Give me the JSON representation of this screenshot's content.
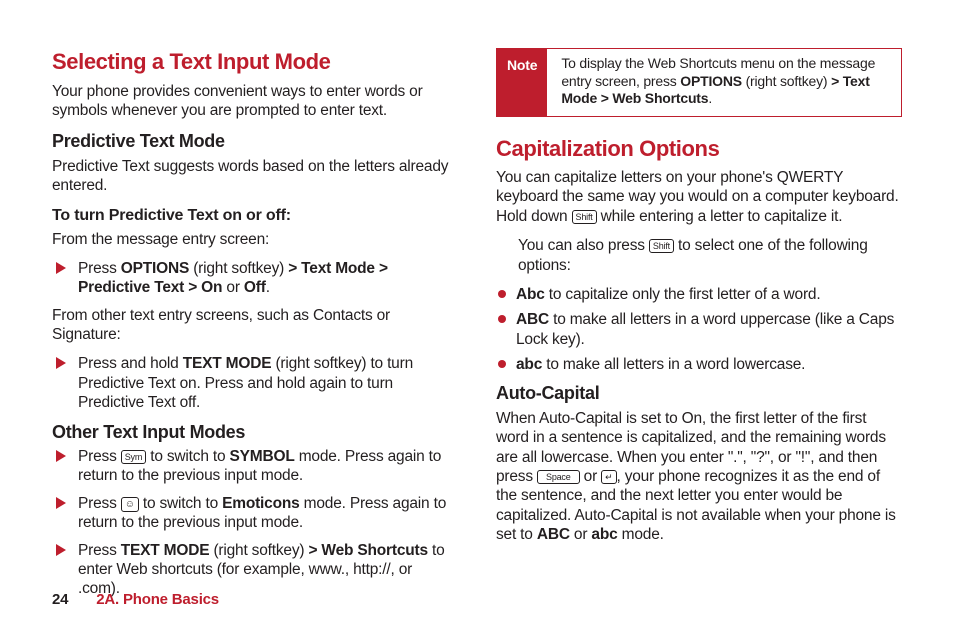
{
  "colors": {
    "accent": "#be1e2d",
    "text": "#231f20",
    "background": "#ffffff"
  },
  "left": {
    "h1": "Selecting a Text Input Mode",
    "intro": "Your phone provides convenient ways to enter words or symbols whenever you are prompted to enter text.",
    "predictive": {
      "h2": "Predictive Text Mode",
      "body": "Predictive Text suggests words based on the letters already entered.",
      "howto_h": "To turn Predictive Text on or off:",
      "howto_intro": "From the message entry screen:",
      "step1_pre": "Press ",
      "step1_b1": "OPTIONS",
      "step1_mid1": " (right softkey) ",
      "step1_b2": "> Text Mode > Predictive Text > On",
      "step1_mid2": " or ",
      "step1_b3": "Off",
      "step1_end": ".",
      "other_intro": "From other text entry screens, such as Contacts or Signature:",
      "step2_pre": "Press and hold ",
      "step2_b1": "TEXT MODE",
      "step2_end": " (right softkey) to turn Predictive Text on. Press and hold again to turn Predictive Text off."
    },
    "other": {
      "h2": "Other Text Input Modes",
      "i1_pre": "Press ",
      "i1_key": "Sym",
      "i1_mid": " to switch to ",
      "i1_b": "SYMBOL",
      "i1_end": " mode. Press again to return to the previous input mode.",
      "i2_pre": "Press ",
      "i2_key": "☺",
      "i2_mid": " to switch to ",
      "i2_b": "Emoticons",
      "i2_end": " mode. Press again to return to the previous input mode.",
      "i3_pre": "Press ",
      "i3_b1": "TEXT MODE",
      "i3_mid": " (right softkey) ",
      "i3_b2": "> Web Shortcuts",
      "i3_end": " to enter Web shortcuts (for example, www., http://, or .com)."
    }
  },
  "right": {
    "note": {
      "label": "Note",
      "t1": "To display the Web Shortcuts menu on the message entry screen, press ",
      "b1": "OPTIONS",
      "t2": " (right softkey) ",
      "b2": "> Text Mode > Web Shortcuts",
      "t3": "."
    },
    "h1": "Capitalization Options",
    "p1_a": "You can capitalize letters on your phone's QWERTY keyboard the same way you would on a computer keyboard. Hold down ",
    "p1_key": "Shift",
    "p1_b": " while entering a letter to capitalize it.",
    "p2_a": "You can also press ",
    "p2_key": "Shift",
    "p2_b": " to select one of the following options:",
    "b1_b": "Abc",
    "b1_t": " to capitalize only the first letter of a word.",
    "b2_b": "ABC",
    "b2_t": " to make all letters in a word uppercase (like a Caps Lock key).",
    "b3_b": "abc",
    "b3_t": " to make all letters in a word lowercase.",
    "auto": {
      "h2": "Auto-Capital",
      "t1": "When Auto-Capital is set to On, the first letter of the first word in a sentence is capitalized, and the remaining words are all lowercase. When you enter \".\", \"?\", or \"!\", and then press ",
      "key1": "Space",
      "t2": " or ",
      "key2": "↵",
      "t3": ", your phone recognizes it as the end of the sentence, and the next letter you enter would be capitalized. Auto-Capital is not available when your phone is set to ",
      "b1": "ABC",
      "t4": " or ",
      "b2": "abc",
      "t5": " mode."
    }
  },
  "footer": {
    "page": "24",
    "chapter": "2A. Phone Basics"
  }
}
